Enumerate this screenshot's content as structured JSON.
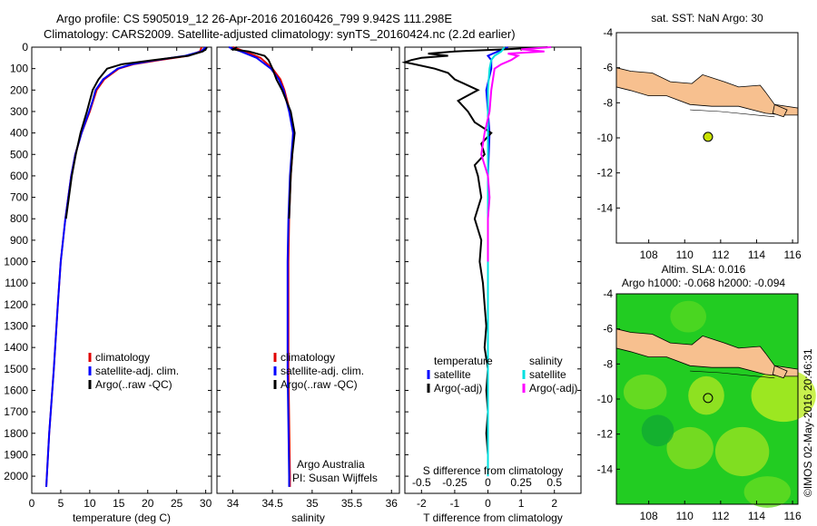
{
  "header": {
    "line1": "Argo profile: CS 5905019_12 26-Apr-2016 20160426_799 9.942S 111.298E",
    "line2": "Climatology: CARS2009. Satellite-adjusted climatology: synTS_20160424.nc (2.2d earlier)"
  },
  "colors": {
    "climatology": "#e00000",
    "satellite": "#0000ff",
    "argo": "#000000",
    "sat_salinity": "#00e0e0",
    "argo_salinity": "#ff00ff",
    "land": "#f7c08f",
    "marker": "#c8e000"
  },
  "chart_data": [
    {
      "type": "line",
      "xlabel": "temperature (deg C)",
      "ylabel": "",
      "xlim": [
        0,
        31
      ],
      "ylim": [
        2080,
        0
      ],
      "xticks": [
        0,
        5,
        10,
        15,
        20,
        25,
        30
      ],
      "yticks": [
        0,
        100,
        200,
        300,
        400,
        500,
        600,
        700,
        800,
        900,
        1000,
        1100,
        1200,
        1300,
        1400,
        1500,
        1600,
        1700,
        1800,
        1900,
        2000
      ],
      "legend": [
        "climatology",
        "satellite-adj. clim.",
        "Argo(..raw -QC)"
      ],
      "series": [
        {
          "name": "climatology",
          "y": [
            0,
            20,
            40,
            60,
            80,
            100,
            150,
            200,
            250,
            300,
            400,
            500,
            600,
            800,
            1000,
            1200,
            1500,
            1800,
            2000,
            2050
          ],
          "x": [
            29.3,
            29.0,
            27.0,
            22.0,
            17.5,
            15.0,
            12.5,
            11.2,
            10.6,
            10.0,
            8.6,
            7.5,
            6.8,
            5.8,
            5.0,
            4.5,
            3.8,
            3.0,
            2.6,
            2.5
          ]
        },
        {
          "name": "satellite-adj. clim.",
          "y": [
            0,
            20,
            40,
            60,
            80,
            100,
            150,
            200,
            250,
            300,
            400,
            500,
            600,
            800,
            1000,
            1200,
            1500,
            1800,
            2000,
            2050
          ],
          "x": [
            30.0,
            29.2,
            26.5,
            21.5,
            17.2,
            14.8,
            12.3,
            11.0,
            10.5,
            9.9,
            8.6,
            7.5,
            6.8,
            5.8,
            5.0,
            4.5,
            3.8,
            3.0,
            2.6,
            2.5
          ]
        },
        {
          "name": "Argo(..raw -QC)",
          "y": [
            0,
            10,
            20,
            40,
            60,
            80,
            100,
            150,
            200,
            250,
            300,
            400,
            500,
            600,
            800
          ],
          "x": [
            30.2,
            30.0,
            29.5,
            27.0,
            21.0,
            15.5,
            13.0,
            11.5,
            10.5,
            10.0,
            9.5,
            8.4,
            7.6,
            6.9,
            5.9
          ]
        }
      ]
    },
    {
      "type": "line",
      "xlabel": "salinity",
      "ylabel": "",
      "xlim": [
        33.8,
        36.1
      ],
      "ylim": [
        2080,
        0
      ],
      "xticks": [
        34,
        34.5,
        35,
        35.5,
        36
      ],
      "legend": [
        "climatology",
        "satellite-adj. clim.",
        "Argo(..raw -QC)"
      ],
      "annotations": [
        "Argo Australia",
        "PI: Susan Wijffels"
      ],
      "series": [
        {
          "name": "climatology",
          "y": [
            0,
            20,
            50,
            100,
            150,
            200,
            300,
            400,
            500,
            600,
            800,
            1000,
            1500,
            2000,
            2050
          ],
          "x": [
            34.0,
            34.15,
            34.35,
            34.5,
            34.6,
            34.65,
            34.72,
            34.76,
            34.75,
            34.73,
            34.71,
            34.7,
            34.7,
            34.72,
            34.72
          ]
        },
        {
          "name": "satellite-adj. clim.",
          "y": [
            0,
            20,
            50,
            100,
            150,
            200,
            300,
            400,
            500,
            600,
            800,
            1000,
            1500,
            2000,
            2050
          ],
          "x": [
            33.95,
            34.1,
            34.3,
            34.48,
            34.58,
            34.64,
            34.71,
            34.76,
            34.74,
            34.72,
            34.7,
            34.69,
            34.69,
            34.71,
            34.71
          ]
        },
        {
          "name": "Argo(..raw -QC)",
          "y": [
            0,
            10,
            20,
            40,
            60,
            100,
            150,
            200,
            300,
            400,
            500,
            600,
            800
          ],
          "x": [
            34.05,
            34.0,
            34.2,
            34.4,
            34.45,
            34.5,
            34.55,
            34.62,
            34.73,
            34.78,
            34.75,
            34.73,
            34.71
          ]
        }
      ]
    },
    {
      "type": "line",
      "xlabel": "T difference from climatology",
      "xlabel_top": "S difference from climatology",
      "xlim": [
        -2.5,
        2.8
      ],
      "ylim": [
        2080,
        0
      ],
      "xticks_bottom": [
        -2,
        -1,
        0,
        1,
        2
      ],
      "xticks_top_labels": [
        "-0.5",
        "-0.25",
        "0",
        "0.25",
        "0.5"
      ],
      "legend": [
        "temperature",
        "satellite",
        "Argo(-adj)",
        "salinity",
        "satellite",
        "Argo(-adj)"
      ],
      "series": [
        {
          "name": "satellite",
          "y": [
            0,
            20,
            40,
            60,
            100,
            200,
            300,
            400,
            600,
            800,
            1000,
            1500,
            2000
          ],
          "x": [
            0.6,
            0.3,
            0.0,
            0.1,
            0.1,
            -0.05,
            0.0,
            0.05,
            0.0,
            0.0,
            0.0,
            0.0,
            0.0
          ]
        },
        {
          "name": "Argo(-adj)",
          "y": [
            0,
            10,
            20,
            30,
            40,
            50,
            60,
            70,
            80,
            100,
            120,
            150,
            200,
            250,
            300,
            350,
            400,
            450,
            500,
            550,
            600,
            700,
            800,
            900,
            1000,
            1100,
            1200,
            1300,
            1400,
            1500,
            1600,
            1700,
            1800,
            1900,
            1950
          ],
          "x": [
            1.8,
            0.5,
            -1.0,
            -1.8,
            -1.2,
            -2.0,
            -2.3,
            -2.5,
            -2.2,
            -1.6,
            -1.2,
            -1.0,
            -0.3,
            -0.9,
            -0.6,
            -0.4,
            0.1,
            -0.2,
            -0.1,
            -0.4,
            -0.3,
            -0.2,
            -0.4,
            -0.2,
            -0.25,
            -0.15,
            -0.1,
            -0.05,
            -0.1,
            0.0,
            -0.05,
            0.0,
            -0.05,
            0.0,
            0.0
          ]
        },
        {
          "name": "satellite",
          "y": [
            0,
            20,
            40,
            60,
            100,
            200,
            300,
            400,
            600,
            800,
            1000,
            1500,
            2000
          ],
          "x": [
            0.5,
            0.4,
            0.2,
            0.1,
            0.05,
            0.0,
            0.0,
            0.0,
            0.0,
            0.0,
            0.0,
            0.0,
            0.0
          ]
        },
        {
          "name": "Argo(-adj)",
          "y": [
            0,
            10,
            20,
            30,
            40,
            60,
            80,
            100,
            200,
            300,
            400,
            500,
            600,
            700,
            800,
            1000
          ],
          "x": [
            1.9,
            1.0,
            1.7,
            0.6,
            0.9,
            0.7,
            0.4,
            0.2,
            0.1,
            0.05,
            -0.1,
            -0.2,
            0.0,
            0.05,
            0.0,
            0.0
          ]
        }
      ]
    },
    {
      "type": "scatter",
      "title": "sat. SST: NaN Argo: 30",
      "xlim": [
        106.2,
        116.3
      ],
      "ylim": [
        -16,
        -4
      ],
      "xticks": [
        108,
        110,
        112,
        114,
        116
      ],
      "yticks": [
        -4,
        -6,
        -8,
        -10,
        -12,
        -14
      ],
      "x": [
        111.298
      ],
      "y": [
        -9.942
      ]
    },
    {
      "type": "heatmap",
      "title_lines": [
        "Altim. SLA: 0.016",
        "Argo h1000: -0.068 h2000: -0.094"
      ],
      "xlim": [
        106.2,
        116.3
      ],
      "ylim": [
        -16,
        -4
      ],
      "xticks": [
        108,
        110,
        112,
        114,
        116
      ],
      "yticks": [
        -4,
        -6,
        -8,
        -10,
        -12,
        -14
      ],
      "x": [
        111.298
      ],
      "y": [
        -9.942
      ]
    }
  ],
  "credit": "©IMOS 02-May-2016 20:46:31"
}
